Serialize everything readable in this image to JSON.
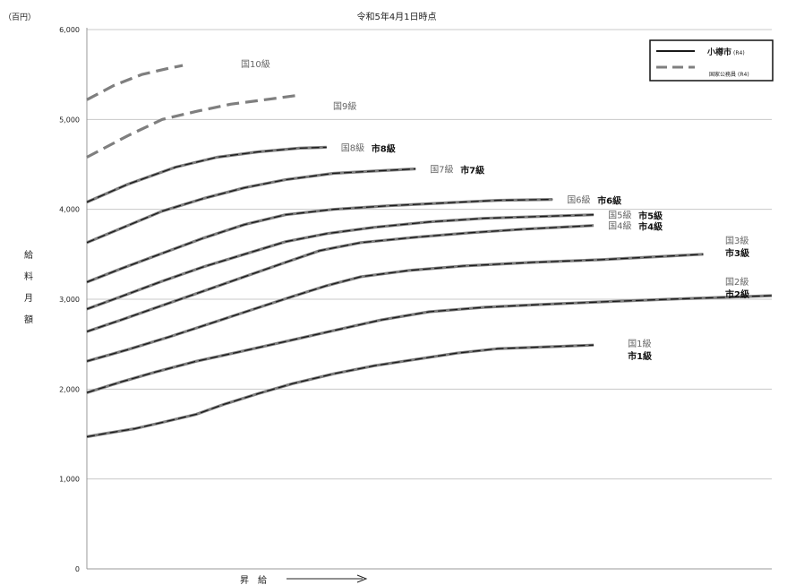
{
  "chart_data": {
    "type": "line",
    "title": "令和5年4月1日時点",
    "unit_label": "（百円）",
    "ylabel": [
      "給",
      "料",
      "月",
      "額"
    ],
    "xlabel": "昇　給",
    "ylim": [
      0,
      6000
    ],
    "yticks": [
      0,
      1000,
      2000,
      3000,
      4000,
      5000,
      6000
    ],
    "ytick_labels": [
      "0",
      "1,000",
      "2,000",
      "3,000",
      "4,000",
      "5,000",
      "6,000"
    ],
    "grid": true,
    "legend": {
      "placement": "top-right",
      "entries": [
        {
          "name": "小樽市",
          "note": "(R4)",
          "style": "solid"
        },
        {
          "name": "国家公務員",
          "note": "(R4)",
          "style": "dashed"
        }
      ]
    },
    "colors": {
      "kuni": "#7f7f7f",
      "shi": "#1a1a1a",
      "grid": "#c8c8c8"
    },
    "x_max": 100,
    "grades": [
      {
        "kuni_label": "国1級",
        "shi_label": "市1級",
        "both": true,
        "points": [
          [
            0,
            1470
          ],
          [
            3,
            1510
          ],
          [
            7,
            1560
          ],
          [
            11,
            1630
          ],
          [
            16,
            1720
          ],
          [
            20,
            1830
          ],
          [
            25,
            1950
          ],
          [
            30,
            2060
          ],
          [
            36,
            2170
          ],
          [
            42,
            2260
          ],
          [
            48,
            2330
          ],
          [
            54,
            2400
          ],
          [
            60,
            2450
          ],
          [
            74,
            2490
          ]
        ]
      },
      {
        "kuni_label": "国2級",
        "shi_label": "市2級",
        "both": true,
        "points": [
          [
            0,
            1960
          ],
          [
            5,
            2080
          ],
          [
            10,
            2190
          ],
          [
            16,
            2310
          ],
          [
            22,
            2410
          ],
          [
            29,
            2530
          ],
          [
            36,
            2650
          ],
          [
            43,
            2770
          ],
          [
            50,
            2860
          ],
          [
            58,
            2910
          ],
          [
            66,
            2940
          ],
          [
            75,
            2970
          ],
          [
            85,
            3000
          ],
          [
            100,
            3040
          ]
        ]
      },
      {
        "kuni_label": "国3級",
        "shi_label": "市3級",
        "both": true,
        "points": [
          [
            0,
            2310
          ],
          [
            6,
            2440
          ],
          [
            12,
            2580
          ],
          [
            18,
            2730
          ],
          [
            24,
            2880
          ],
          [
            30,
            3030
          ],
          [
            35,
            3150
          ],
          [
            40,
            3250
          ],
          [
            47,
            3320
          ],
          [
            55,
            3370
          ],
          [
            65,
            3410
          ],
          [
            75,
            3440
          ],
          [
            90,
            3500
          ]
        ]
      },
      {
        "kuni_label": "国4級",
        "shi_label": "市4級",
        "both": true,
        "points": [
          [
            0,
            2640
          ],
          [
            5,
            2770
          ],
          [
            11,
            2930
          ],
          [
            17,
            3090
          ],
          [
            23,
            3250
          ],
          [
            29,
            3410
          ],
          [
            34,
            3540
          ],
          [
            40,
            3630
          ],
          [
            48,
            3690
          ],
          [
            56,
            3740
          ],
          [
            64,
            3780
          ],
          [
            74,
            3820
          ]
        ]
      },
      {
        "kuni_label": "国5級",
        "shi_label": "市5級",
        "both": true,
        "points": [
          [
            0,
            2890
          ],
          [
            5,
            3030
          ],
          [
            11,
            3200
          ],
          [
            17,
            3360
          ],
          [
            23,
            3500
          ],
          [
            29,
            3640
          ],
          [
            35,
            3730
          ],
          [
            42,
            3800
          ],
          [
            50,
            3860
          ],
          [
            58,
            3900
          ],
          [
            66,
            3920
          ],
          [
            74,
            3940
          ]
        ]
      },
      {
        "kuni_label": "国6級",
        "shi_label": "市6級",
        "both": true,
        "points": [
          [
            0,
            3190
          ],
          [
            5,
            3340
          ],
          [
            11,
            3510
          ],
          [
            17,
            3680
          ],
          [
            23,
            3830
          ],
          [
            29,
            3940
          ],
          [
            36,
            4000
          ],
          [
            44,
            4040
          ],
          [
            52,
            4070
          ],
          [
            60,
            4100
          ],
          [
            68,
            4110
          ]
        ]
      },
      {
        "kuni_label": "国7級",
        "shi_label": "市7級",
        "both": true,
        "points": [
          [
            0,
            3630
          ],
          [
            6,
            3820
          ],
          [
            11,
            3980
          ],
          [
            17,
            4120
          ],
          [
            23,
            4240
          ],
          [
            29,
            4330
          ],
          [
            36,
            4400
          ],
          [
            43,
            4430
          ],
          [
            48,
            4450
          ]
        ]
      },
      {
        "kuni_label": "国8級",
        "shi_label": "市8級",
        "both": true,
        "points": [
          [
            0,
            4080
          ],
          [
            6,
            4280
          ],
          [
            13,
            4470
          ],
          [
            19,
            4580
          ],
          [
            25,
            4640
          ],
          [
            31,
            4680
          ],
          [
            35,
            4690
          ]
        ]
      },
      {
        "kuni_label": "国9級",
        "shi_label": "",
        "both": false,
        "points": [
          [
            0,
            4580
          ],
          [
            6,
            4820
          ],
          [
            11,
            5000
          ],
          [
            16,
            5090
          ],
          [
            21,
            5170
          ],
          [
            27,
            5230
          ],
          [
            31,
            5270
          ]
        ]
      },
      {
        "kuni_label": "国10級",
        "shi_label": "",
        "both": false,
        "points": [
          [
            0,
            5220
          ],
          [
            4,
            5380
          ],
          [
            8,
            5500
          ],
          [
            12,
            5570
          ],
          [
            14,
            5600
          ]
        ]
      }
    ]
  }
}
